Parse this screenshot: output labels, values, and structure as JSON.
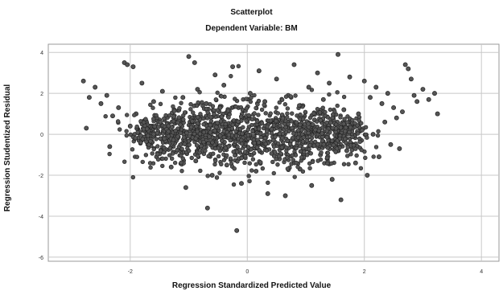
{
  "chart_data": {
    "type": "scatter",
    "title": "Scatterplot",
    "subtitle": "Dependent Variable: BM",
    "xlabel": "Regression Standardized Predicted Value",
    "ylabel": "Regression Studentized Residual",
    "xlim": [
      -3.4,
      4.3
    ],
    "ylim": [
      -6.2,
      4.4
    ],
    "x_ticks": [
      -2,
      0,
      2,
      4
    ],
    "y_ticks": [
      -6,
      -4,
      -2,
      0,
      2,
      4
    ],
    "x_tick_labels": [
      "-2",
      "0",
      "2",
      "4"
    ],
    "y_tick_labels": [
      "-6",
      "-4",
      "-2",
      "0",
      "2",
      "4"
    ],
    "grid": true,
    "point_color": "#555555",
    "point_edge_color": "#222222",
    "points": [
      [
        -2.8,
        2.6
      ],
      [
        -2.7,
        1.8
      ],
      [
        -2.6,
        2.3
      ],
      [
        -2.75,
        0.3
      ],
      [
        -2.5,
        1.5
      ],
      [
        -2.4,
        1.9
      ],
      [
        -2.3,
        0.9
      ],
      [
        -2.35,
        -0.6
      ],
      [
        -2.2,
        1.3
      ],
      [
        -2.1,
        3.5
      ],
      [
        -2.05,
        3.4
      ],
      [
        -1.95,
        3.3
      ],
      [
        -2.0,
        0.4
      ],
      [
        -1.9,
        1.0
      ],
      [
        -1.85,
        -0.3
      ],
      [
        -1.8,
        2.5
      ],
      [
        -1.7,
        -0.5
      ],
      [
        -1.65,
        0.2
      ],
      [
        -1.6,
        1.6
      ],
      [
        -1.55,
        -1.1
      ],
      [
        -1.5,
        0.7
      ],
      [
        -1.45,
        2.1
      ],
      [
        -1.4,
        -0.2
      ],
      [
        -1.35,
        0.5
      ],
      [
        -1.3,
        -1.6
      ],
      [
        -1.25,
        1.2
      ],
      [
        -1.2,
        0.1
      ],
      [
        -1.15,
        -0.8
      ],
      [
        -1.1,
        1.8
      ],
      [
        -1.05,
        -2.6
      ],
      [
        -1.0,
        3.8
      ],
      [
        -0.98,
        0.6
      ],
      [
        -0.95,
        -0.1
      ],
      [
        -0.9,
        3.5
      ],
      [
        -0.88,
        -1.3
      ],
      [
        -0.85,
        2.2
      ],
      [
        -0.8,
        0.9
      ],
      [
        -0.75,
        -0.4
      ],
      [
        -0.7,
        1.5
      ],
      [
        -0.68,
        -3.6
      ],
      [
        -0.65,
        0.3
      ],
      [
        -0.6,
        -2.0
      ],
      [
        -0.55,
        2.9
      ],
      [
        -0.5,
        0.0
      ],
      [
        -0.48,
        1.1
      ],
      [
        -0.45,
        -0.7
      ],
      [
        -0.4,
        2.4
      ],
      [
        -0.35,
        -1.5
      ],
      [
        -0.3,
        0.4
      ],
      [
        -0.25,
        3.3
      ],
      [
        -0.2,
        -0.3
      ],
      [
        -0.18,
        -4.7
      ],
      [
        -0.15,
        1.3
      ],
      [
        -0.1,
        -2.4
      ],
      [
        -0.05,
        0.8
      ],
      [
        0.0,
        -0.9
      ],
      [
        0.05,
        2.0
      ],
      [
        0.1,
        0.2
      ],
      [
        0.15,
        -1.8
      ],
      [
        0.2,
        3.1
      ],
      [
        0.25,
        -0.5
      ],
      [
        0.3,
        1.6
      ],
      [
        0.35,
        -2.9
      ],
      [
        0.4,
        0.6
      ],
      [
        0.45,
        -0.2
      ],
      [
        0.5,
        2.7
      ],
      [
        0.55,
        -1.2
      ],
      [
        0.6,
        0.9
      ],
      [
        0.65,
        -3.0
      ],
      [
        0.7,
        1.9
      ],
      [
        0.75,
        -0.6
      ],
      [
        0.8,
        3.4
      ],
      [
        0.85,
        0.1
      ],
      [
        0.9,
        -1.7
      ],
      [
        0.95,
        1.4
      ],
      [
        1.0,
        -0.4
      ],
      [
        1.05,
        2.3
      ],
      [
        1.1,
        -2.5
      ],
      [
        1.15,
        0.7
      ],
      [
        1.2,
        3.0
      ],
      [
        1.25,
        -1.0
      ],
      [
        1.3,
        1.7
      ],
      [
        1.35,
        -0.1
      ],
      [
        1.4,
        2.5
      ],
      [
        1.45,
        -2.2
      ],
      [
        1.5,
        0.5
      ],
      [
        1.55,
        3.9
      ],
      [
        1.6,
        -3.2
      ],
      [
        1.65,
        1.2
      ],
      [
        1.7,
        -0.8
      ],
      [
        1.75,
        2.8
      ],
      [
        1.8,
        0.3
      ],
      [
        1.85,
        -1.4
      ],
      [
        1.9,
        1.0
      ],
      [
        1.95,
        -0.3
      ],
      [
        2.0,
        2.6
      ],
      [
        2.05,
        -2.0
      ],
      [
        2.1,
        1.8
      ],
      [
        2.15,
        0.0
      ],
      [
        2.2,
        2.3
      ],
      [
        2.25,
        -1.1
      ],
      [
        2.3,
        1.5
      ],
      [
        2.35,
        0.6
      ],
      [
        2.4,
        2.0
      ],
      [
        2.45,
        -0.5
      ],
      [
        2.5,
        1.3
      ],
      [
        2.55,
        0.8
      ],
      [
        2.6,
        -0.7
      ],
      [
        2.65,
        1.1
      ],
      [
        2.7,
        3.4
      ],
      [
        2.75,
        3.2
      ],
      [
        2.8,
        2.7
      ],
      [
        2.85,
        1.9
      ],
      [
        2.9,
        1.6
      ],
      [
        3.0,
        2.2
      ],
      [
        3.1,
        1.7
      ],
      [
        3.2,
        2.0
      ],
      [
        3.25,
        1.0
      ]
    ]
  }
}
